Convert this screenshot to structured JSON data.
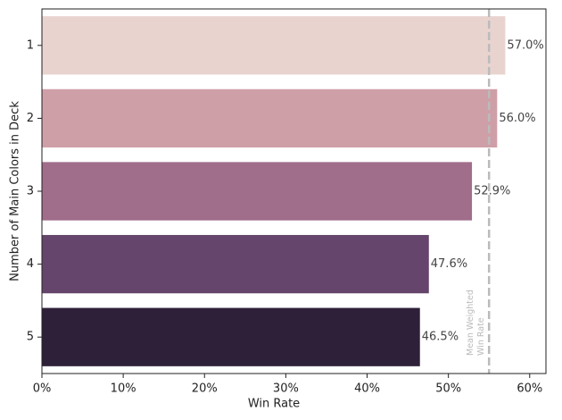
{
  "chart_data": {
    "type": "hbar",
    "x_label": "Win Rate",
    "y_label": "Number of Main Colors in Deck",
    "categories": [
      "1",
      "2",
      "3",
      "4",
      "5"
    ],
    "values": [
      57.0,
      56.0,
      52.9,
      47.6,
      46.5
    ],
    "value_labels": [
      "57.0%",
      "56.0%",
      "52.9%",
      "47.6%",
      "46.5%"
    ],
    "colors": [
      "#e8d3cf",
      "#cf9fa8",
      "#a06d8b",
      "#65456b",
      "#2e2039"
    ],
    "xlim": [
      0,
      62
    ],
    "xticks": [
      {
        "value": 0,
        "label": "0%"
      },
      {
        "value": 10,
        "label": "10%"
      },
      {
        "value": 20,
        "label": "20%"
      },
      {
        "value": 30,
        "label": "30%"
      },
      {
        "value": 40,
        "label": "40%"
      },
      {
        "value": 50,
        "label": "50%"
      },
      {
        "value": 60,
        "label": "60%"
      }
    ],
    "reference_line": {
      "value": 55.0,
      "label": [
        "Mean Weighted",
        "Win Rate"
      ],
      "color": "#bbbbbb"
    }
  }
}
